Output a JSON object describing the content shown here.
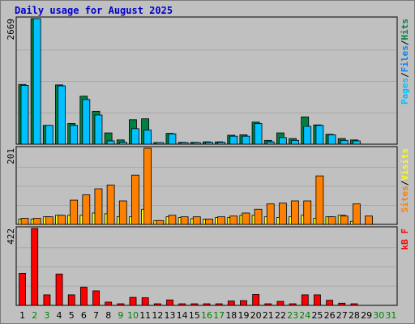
{
  "title": "Daily usage for August 2025",
  "colors": {
    "hits": "#008040",
    "files": "#00c0ff",
    "pages": "#00c0ff",
    "sites": "#ff8000",
    "visits": "#ffff00",
    "kbytes": "#ff0000",
    "weekend": "#008000",
    "weekday": "#000000",
    "panel_bg": "#c0c0c0"
  },
  "chart_data": [
    {
      "type": "bar",
      "panel": "hits-files-pages",
      "ymax_label": "2669",
      "ylim": [
        0,
        2669
      ],
      "legend": [
        {
          "label": "Pages",
          "color": "#00c0ff"
        },
        {
          "label": "/",
          "color": "#000000"
        },
        {
          "label": "Files",
          "color": "#0080ff"
        },
        {
          "label": "/",
          "color": "#000000"
        },
        {
          "label": "Hits",
          "color": "#008040"
        }
      ],
      "categories": [
        "1",
        "2",
        "3",
        "4",
        "5",
        "6",
        "7",
        "8",
        "9",
        "10",
        "11",
        "12",
        "13",
        "14",
        "15",
        "16",
        "17",
        "18",
        "19",
        "20",
        "21",
        "22",
        "23",
        "24",
        "25",
        "26",
        "27",
        "28",
        "29",
        "30",
        "31"
      ],
      "series": [
        {
          "name": "Hits",
          "color": "#008040",
          "values": [
            1270,
            2669,
            400,
            1260,
            440,
            1020,
            700,
            240,
            90,
            520,
            540,
            20,
            230,
            40,
            40,
            50,
            50,
            190,
            200,
            470,
            80,
            240,
            120,
            580,
            410,
            210,
            120,
            90,
            0,
            0,
            0
          ]
        },
        {
          "name": "Files",
          "color": "#00c0ff",
          "values": [
            1250,
            2669,
            400,
            1240,
            400,
            950,
            620,
            70,
            40,
            330,
            300,
            15,
            220,
            30,
            30,
            40,
            40,
            170,
            170,
            440,
            50,
            140,
            80,
            380,
            400,
            200,
            80,
            70,
            0,
            0,
            0
          ]
        }
      ]
    },
    {
      "type": "bar",
      "panel": "sites-visits",
      "ymax_label": "201",
      "ylim": [
        0,
        201
      ],
      "legend": [
        {
          "label": "Sites",
          "color": "#ff8000"
        },
        {
          "label": "/",
          "color": "#000000"
        },
        {
          "label": "Visits",
          "color": "#ffff00"
        }
      ],
      "categories": [
        "1",
        "2",
        "3",
        "4",
        "5",
        "6",
        "7",
        "8",
        "9",
        "10",
        "11",
        "12",
        "13",
        "14",
        "15",
        "16",
        "17",
        "18",
        "19",
        "20",
        "21",
        "22",
        "23",
        "24",
        "25",
        "26",
        "27",
        "28",
        "29",
        "30",
        "31"
      ],
      "series": [
        {
          "name": "Visits",
          "color": "#ffff00",
          "values": [
            14,
            14,
            20,
            24,
            24,
            24,
            30,
            28,
            20,
            20,
            40,
            10,
            20,
            18,
            15,
            14,
            18,
            18,
            24,
            24,
            20,
            18,
            20,
            24,
            16,
            20,
            24,
            8,
            0,
            0,
            0
          ]
        },
        {
          "name": "Sites",
          "color": "#ff8000",
          "values": [
            16,
            16,
            20,
            24,
            64,
            78,
            94,
            104,
            62,
            130,
            201,
            10,
            24,
            20,
            20,
            14,
            20,
            22,
            30,
            40,
            54,
            56,
            62,
            62,
            128,
            20,
            22,
            54,
            22,
            0,
            0
          ]
        }
      ]
    },
    {
      "type": "bar",
      "panel": "kbytes",
      "ymax_label": "422",
      "ylim": [
        0,
        422
      ],
      "legend": [
        {
          "label": "kB F",
          "color": "#ff0000"
        }
      ],
      "categories": [
        "1",
        "2",
        "3",
        "4",
        "5",
        "6",
        "7",
        "8",
        "9",
        "10",
        "11",
        "12",
        "13",
        "14",
        "15",
        "16",
        "17",
        "18",
        "19",
        "20",
        "21",
        "22",
        "23",
        "24",
        "25",
        "26",
        "27",
        "28",
        "29",
        "30",
        "31"
      ],
      "series": [
        {
          "name": "kB F",
          "color": "#ff0000",
          "values": [
            176,
            422,
            58,
            172,
            58,
            100,
            80,
            18,
            6,
            44,
            42,
            4,
            30,
            6,
            6,
            8,
            8,
            24,
            26,
            60,
            6,
            22,
            8,
            58,
            58,
            28,
            12,
            8,
            0,
            0,
            0
          ]
        }
      ]
    }
  ],
  "x_labels": [
    {
      "text": "1",
      "weekend": false
    },
    {
      "text": "2",
      "weekend": true
    },
    {
      "text": "3",
      "weekend": true
    },
    {
      "text": "4",
      "weekend": false
    },
    {
      "text": "5",
      "weekend": false
    },
    {
      "text": "6",
      "weekend": false
    },
    {
      "text": "7",
      "weekend": false
    },
    {
      "text": "8",
      "weekend": false
    },
    {
      "text": "9",
      "weekend": true
    },
    {
      "text": "10",
      "weekend": true
    },
    {
      "text": "11",
      "weekend": false
    },
    {
      "text": "12",
      "weekend": false
    },
    {
      "text": "13",
      "weekend": false
    },
    {
      "text": "14",
      "weekend": false
    },
    {
      "text": "15",
      "weekend": false
    },
    {
      "text": "16",
      "weekend": true
    },
    {
      "text": "17",
      "weekend": true
    },
    {
      "text": "18",
      "weekend": false
    },
    {
      "text": "19",
      "weekend": false
    },
    {
      "text": "20",
      "weekend": false
    },
    {
      "text": "21",
      "weekend": false
    },
    {
      "text": "22",
      "weekend": false
    },
    {
      "text": "23",
      "weekend": true
    },
    {
      "text": "24",
      "weekend": true
    },
    {
      "text": "25",
      "weekend": false
    },
    {
      "text": "26",
      "weekend": false
    },
    {
      "text": "27",
      "weekend": false
    },
    {
      "text": "28",
      "weekend": false
    },
    {
      "text": "29",
      "weekend": false
    },
    {
      "text": "30",
      "weekend": true
    },
    {
      "text": "31",
      "weekend": true
    }
  ]
}
